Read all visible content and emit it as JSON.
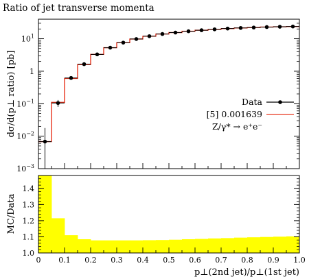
{
  "chart_data": {
    "type": "step-histogram-with-ratio",
    "title": "Ratio of jet transverse momenta",
    "main_panel": {
      "ylabel": "dσ/d(p⊥ ratio) [pb]",
      "yscale": "log",
      "ylim": [
        0.001,
        40
      ],
      "y_ticks": [
        {
          "value": 0.001,
          "label_base": "10",
          "label_exp": "−3"
        },
        {
          "value": 0.01,
          "label_base": "10",
          "label_exp": "−2"
        },
        {
          "value": 0.1,
          "label_base": "10",
          "label_exp": "−1"
        },
        {
          "value": 1,
          "label_base": "1",
          "label_exp": ""
        },
        {
          "value": 10,
          "label_base": "10",
          "label_exp": "1"
        }
      ]
    },
    "ratio_panel": {
      "ylabel": "MC/Data",
      "ylim": [
        1.0,
        1.48
      ],
      "y_ticks": [
        "1.0",
        "1.1",
        "1.2",
        "1.3",
        "1.4"
      ],
      "y_tick_values": [
        1.0,
        1.1,
        1.2,
        1.3,
        1.4
      ]
    },
    "xlabel": "p⊥(2nd jet)/p⊥(1st jet)",
    "xlim": [
      0,
      1
    ],
    "x_ticks": [
      "0",
      "0.1",
      "0.2",
      "0.3",
      "0.4",
      "0.5",
      "0.6",
      "0.7",
      "0.8",
      "0.9",
      "1.0"
    ],
    "x_tick_values": [
      0,
      0.1,
      0.2,
      0.3,
      0.4,
      0.5,
      0.6,
      0.7,
      0.8,
      0.9,
      1.0
    ],
    "bin_edges": [
      0,
      0.05,
      0.1,
      0.15,
      0.2,
      0.25,
      0.3,
      0.35,
      0.4,
      0.45,
      0.5,
      0.55,
      0.6,
      0.65,
      0.7,
      0.75,
      0.8,
      0.85,
      0.9,
      0.95,
      1.0
    ],
    "series": [
      {
        "name": "Data",
        "kind": "points",
        "values": [
          0.0068,
          0.105,
          0.62,
          1.65,
          3.3,
          5.3,
          7.6,
          9.8,
          12.0,
          14.0,
          15.5,
          17.0,
          18.3,
          19.5,
          20.6,
          21.5,
          22.2,
          22.9,
          23.4,
          23.8
        ],
        "err_low": [
          0.0058,
          0.025,
          0.06,
          0.12,
          0.2,
          0.25,
          0.3,
          0.35,
          0.4,
          0.4,
          0.4,
          0.4,
          0.4,
          0.4,
          0.4,
          0.4,
          0.4,
          0.4,
          0.4,
          0.4
        ],
        "err_high": [
          0.011,
          0.025,
          0.06,
          0.12,
          0.2,
          0.25,
          0.3,
          0.35,
          0.4,
          0.4,
          0.4,
          0.4,
          0.4,
          0.4,
          0.4,
          0.4,
          0.4,
          0.4,
          0.4,
          0.4
        ],
        "color": "#000000"
      },
      {
        "name": "[5] 0.001639",
        "kind": "histogram",
        "values": [
          0.0068,
          0.11,
          0.6,
          1.6,
          3.3,
          5.3,
          7.6,
          9.8,
          12.0,
          14.0,
          15.5,
          17.0,
          18.3,
          19.5,
          20.6,
          21.5,
          22.2,
          22.9,
          23.4,
          23.8
        ],
        "color": "#e8341c"
      }
    ],
    "ratio_band": {
      "color": "#ffff00",
      "upper": [
        1.48,
        1.215,
        1.11,
        1.085,
        1.078,
        1.078,
        1.078,
        1.078,
        1.079,
        1.08,
        1.082,
        1.085,
        1.087,
        1.09,
        1.092,
        1.095,
        1.097,
        1.099,
        1.101,
        1.103
      ],
      "lower": [
        1.0,
        1.0,
        1.0,
        1.0,
        1.0,
        1.0,
        1.0,
        1.0,
        1.0,
        1.0,
        1.0,
        1.0,
        1.0,
        1.0,
        1.0,
        1.0,
        1.0,
        1.0,
        1.0,
        1.0
      ]
    },
    "legend": {
      "placement": "right-middle",
      "entries": [
        "Data",
        "[5] 0.001639"
      ],
      "process_text": "Z/γ* → e⁺e⁻"
    }
  }
}
